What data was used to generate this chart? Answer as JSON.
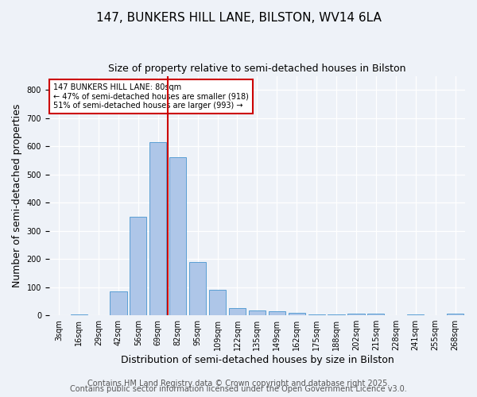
{
  "title": "147, BUNKERS HILL LANE, BILSTON, WV14 6LA",
  "subtitle": "Size of property relative to semi-detached houses in Bilston",
  "xlabel": "Distribution of semi-detached houses by size in Bilston",
  "ylabel": "Number of semi-detached properties",
  "bin_labels": [
    "3sqm",
    "16sqm",
    "29sqm",
    "42sqm",
    "56sqm",
    "69sqm",
    "82sqm",
    "95sqm",
    "109sqm",
    "122sqm",
    "135sqm",
    "149sqm",
    "162sqm",
    "175sqm",
    "188sqm",
    "202sqm",
    "215sqm",
    "228sqm",
    "241sqm",
    "255sqm",
    "268sqm"
  ],
  "values": [
    0,
    3,
    0,
    85,
    350,
    615,
    560,
    190,
    90,
    25,
    18,
    13,
    8,
    4,
    2,
    7,
    6,
    0,
    2,
    0,
    5
  ],
  "bar_color": "#aec6e8",
  "bar_edge_color": "#5a9fd4",
  "vline_index": 6,
  "vline_color": "#cc0000",
  "annotation_text": "147 BUNKERS HILL LANE: 80sqm\n← 47% of semi-detached houses are smaller (918)\n51% of semi-detached houses are larger (993) →",
  "annotation_box_color": "white",
  "annotation_box_edge": "#cc0000",
  "ylim": [
    0,
    850
  ],
  "yticks": [
    0,
    100,
    200,
    300,
    400,
    500,
    600,
    700,
    800
  ],
  "footer1": "Contains HM Land Registry data © Crown copyright and database right 2025.",
  "footer2": "Contains public sector information licensed under the Open Government Licence v3.0.",
  "bg_color": "#eef2f8",
  "plot_bg_color": "#eef2f8",
  "title_fontsize": 11,
  "subtitle_fontsize": 9,
  "axis_label_fontsize": 9,
  "tick_fontsize": 7,
  "annotation_fontsize": 7,
  "footer_fontsize": 7
}
